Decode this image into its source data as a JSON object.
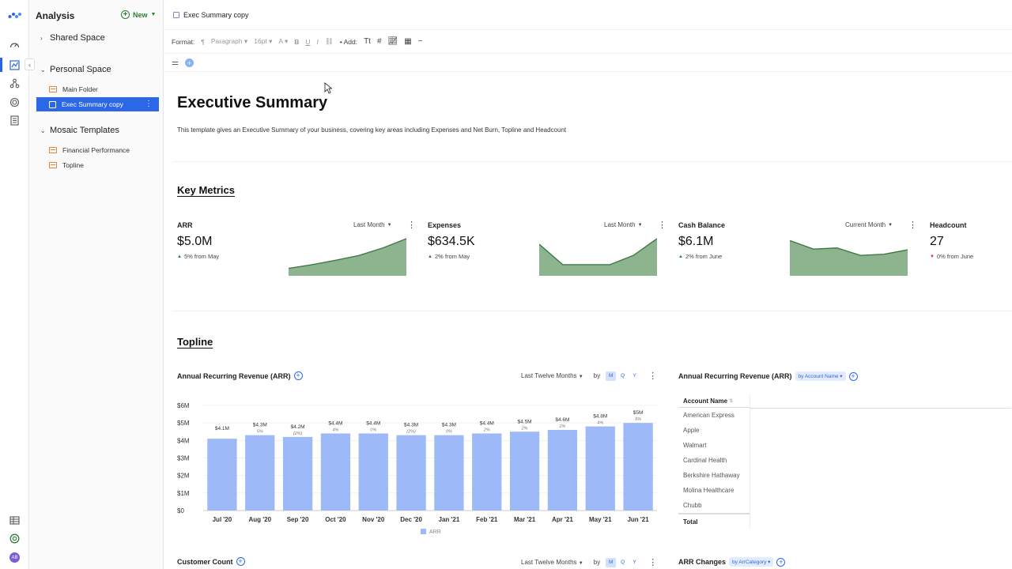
{
  "rail": {
    "icons": [
      "logo-icon",
      "dashboard-icon",
      "analysis-icon",
      "integrations-icon",
      "target-icon",
      "report-icon"
    ],
    "bottom_icons": [
      "table-icon",
      "help-icon",
      "avatar-icon"
    ],
    "avatar": "AB"
  },
  "sidebar": {
    "title": "Analysis",
    "new_label": "New",
    "sections": [
      {
        "label": "Shared Space"
      },
      {
        "label": "Personal Space"
      },
      {
        "label": "Mosaic Templates"
      }
    ],
    "personal_items": [
      "Main Folder",
      "Exec Summary copy"
    ],
    "template_items": [
      "Financial Performance",
      "Topline"
    ]
  },
  "header": {
    "doc_title": "Exec Summary copy"
  },
  "format_bar": {
    "format_label": "Format:",
    "paragraph": "Paragraph",
    "size": "16pt",
    "font": "A",
    "add_label": "Add:"
  },
  "document": {
    "title": "Executive Summary",
    "description": "This template gives an Executive Summary of your business, covering key areas including Expenses and Net Burn, Topline and Headcount",
    "key_metrics_heading": "Key Metrics",
    "topline_heading": "Topline"
  },
  "metrics": [
    {
      "title": "ARR",
      "period": "Last Month",
      "value": "$5.0M",
      "delta": "5% from May",
      "direction": "up",
      "spark": [
        0.2,
        0.3,
        0.42,
        0.55,
        0.75,
        1.0
      ]
    },
    {
      "title": "Expenses",
      "period": "Last Month",
      "value": "$634.5K",
      "delta": "2% from May",
      "direction": "up",
      "spark": [
        0.85,
        0.3,
        0.3,
        0.3,
        0.55,
        1.0
      ]
    },
    {
      "title": "Cash Balance",
      "period": "Current Month",
      "value": "$6.1M",
      "delta": "2% from June",
      "direction": "up",
      "spark": [
        0.95,
        0.72,
        0.75,
        0.55,
        0.58,
        0.7
      ]
    },
    {
      "title": "Headcount",
      "period": "",
      "value": "27",
      "delta": "0% from June",
      "direction": "down",
      "spark": []
    }
  ],
  "arr_chart": {
    "title": "Annual Recurring Revenue (ARR)",
    "period": "Last Twelve Months",
    "by_label": "by",
    "granularity": [
      "M",
      "Q",
      "Y"
    ],
    "selected_granularity": "M",
    "legend": "ARR",
    "bar_color": "#9db9f7"
  },
  "chart_data": {
    "type": "bar",
    "categories": [
      "Jul '20",
      "Aug '20",
      "Sep '20",
      "Oct '20",
      "Nov '20",
      "Dec '20",
      "Jan '21",
      "Feb '21",
      "Mar '21",
      "Apr '21",
      "May '21",
      "Jun '21"
    ],
    "series": [
      {
        "name": "ARR",
        "values": [
          4.1,
          4.3,
          4.2,
          4.4,
          4.4,
          4.3,
          4.3,
          4.4,
          4.5,
          4.6,
          4.8,
          5.0
        ]
      }
    ],
    "value_labels": [
      "$4.1M",
      "$4.3M",
      "$4.2M",
      "$4.4M",
      "$4.4M",
      "$4.3M",
      "$4.3M",
      "$4.4M",
      "$4.5M",
      "$4.6M",
      "$4.8M",
      "$5M"
    ],
    "change_labels": [
      "",
      "5%",
      "(2%)",
      "4%",
      "0%",
      "(2%)",
      "0%",
      "2%",
      "2%",
      "2%",
      "4%",
      "5%"
    ],
    "y_ticks": [
      "$0",
      "$1M",
      "$2M",
      "$3M",
      "$4M",
      "$5M",
      "$6M"
    ],
    "ylim": [
      0,
      6
    ],
    "legend": "ARR"
  },
  "arr_table": {
    "title": "Annual Recurring Revenue (ARR)",
    "by_pill": "by Account Name",
    "column": "Account Name",
    "rows": [
      "American Express",
      "Apple",
      "Walmart",
      "Cardinal Health",
      "Berkshire Hathaway",
      "Molina Healthcare",
      "Chubb"
    ],
    "total_label": "Total"
  },
  "customer_count": {
    "title": "Customer Count",
    "period": "Last Twelve Months",
    "by_label": "by",
    "granularity": [
      "M",
      "Q",
      "Y"
    ]
  },
  "arr_changes": {
    "title": "ARR Changes",
    "by_pill": "by ArrCategory"
  }
}
